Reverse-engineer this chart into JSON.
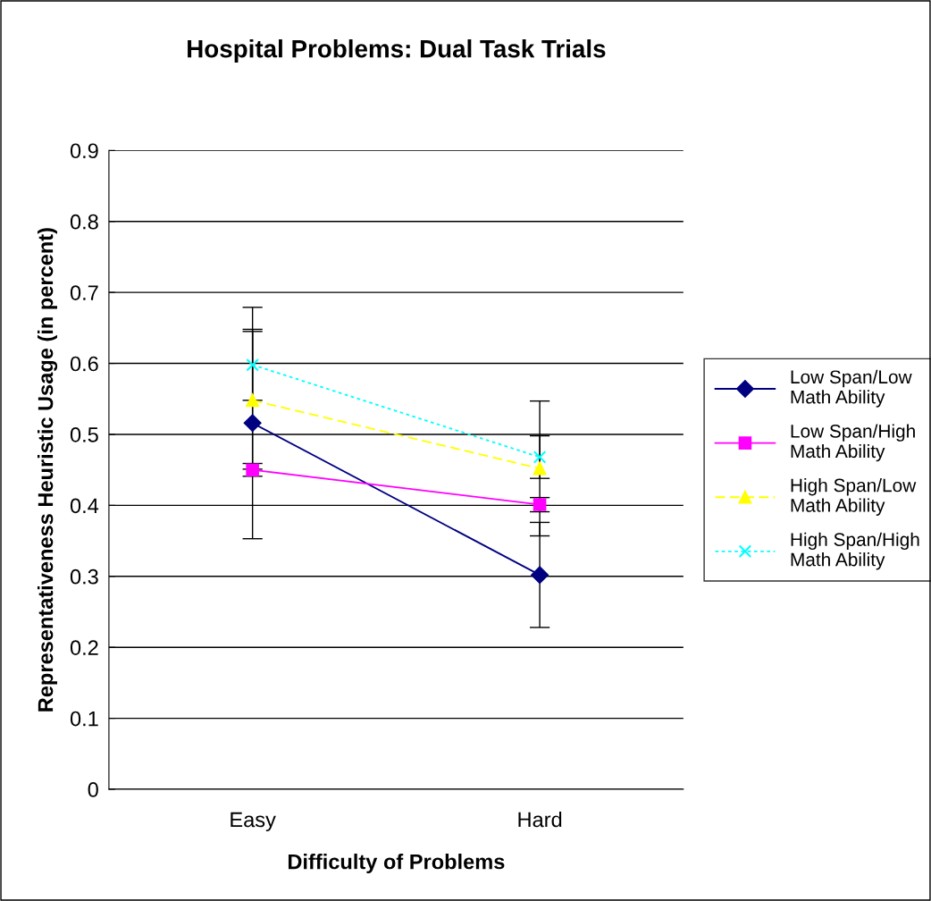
{
  "chart_data": {
    "type": "line",
    "title": "Hospital Problems: Dual Task Trials",
    "xlabel": "Difficulty of Problems",
    "ylabel": "Representativeness Heuristic Usage (in percent)",
    "categories": [
      "Easy",
      "Hard"
    ],
    "series": [
      {
        "name": "Low Span/Low Math Ability",
        "color": "#000080",
        "values": [
          0.516,
          0.302
        ],
        "errors": [
          0.163,
          0.074
        ],
        "marker": "diamond",
        "line_style": "solid"
      },
      {
        "name": "Low Span/High Math Ability",
        "color": "#ff00ff",
        "values": [
          0.45,
          0.401
        ],
        "errors": [
          0.009,
          0.01
        ],
        "marker": "square",
        "line_style": "solid"
      },
      {
        "name": "High Span/Low Math Ability",
        "color": "#ffff00",
        "values": [
          0.548,
          0.452
        ],
        "errors": [
          0.097,
          0.095
        ],
        "marker": "triangle",
        "line_style": "dashed"
      },
      {
        "name": "High Span/High Math Ability",
        "color": "#00ffff",
        "values": [
          0.598,
          0.468
        ],
        "errors": [
          0.05,
          0.03
        ],
        "marker": "cross",
        "line_style": "dotted"
      }
    ],
    "ylim": [
      0,
      0.9
    ],
    "yticks": [
      0,
      0.1,
      0.2,
      0.3,
      0.4,
      0.5,
      0.6,
      0.7,
      0.8,
      0.9
    ],
    "grid": "y",
    "legend": "right"
  }
}
